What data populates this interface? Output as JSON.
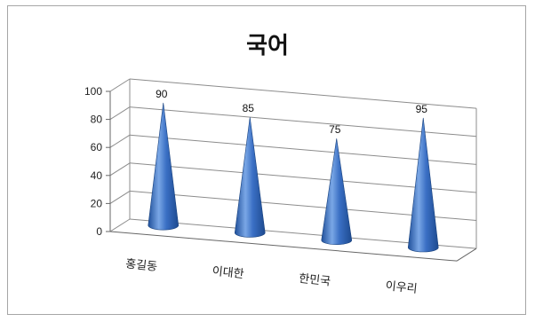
{
  "chart_data": {
    "type": "bar",
    "subtype": "3d-cone",
    "title": "국어",
    "categories": [
      "홍길동",
      "이대한",
      "한민국",
      "이우리"
    ],
    "series": [
      {
        "values": [
          90,
          85,
          75,
          95
        ]
      }
    ],
    "ylim": [
      0,
      100
    ],
    "yticks": [
      0,
      20,
      40,
      60,
      80,
      100
    ],
    "data_labels": true,
    "grid": true,
    "legend": "none",
    "colors": {
      "cone": "#3a6fc4",
      "cone_dark": "#1f4f9a",
      "cone_light": "#7aa7e6",
      "grid": "#8c8c8c"
    }
  }
}
